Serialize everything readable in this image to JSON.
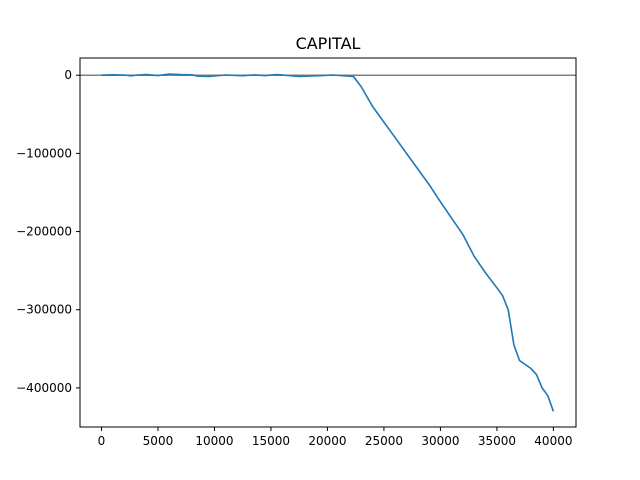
{
  "chart_data": {
    "type": "line",
    "title": "CAPITAL",
    "xlabel": "",
    "ylabel": "",
    "xlim": [
      -1900,
      42000
    ],
    "ylim": [
      -450000,
      22000
    ],
    "xticks": [
      0,
      5000,
      10000,
      15000,
      20000,
      25000,
      30000,
      35000,
      40000
    ],
    "xtick_labels": [
      "0",
      "5000",
      "10000",
      "15000",
      "20000",
      "25000",
      "30000",
      "35000",
      "40000"
    ],
    "yticks": [
      0,
      -100000,
      -200000,
      -300000,
      -400000
    ],
    "ytick_labels": [
      "0",
      "−100000",
      "−200000",
      "−300000",
      "−400000"
    ],
    "grid": false,
    "reference_line": {
      "y": 0,
      "color": "#808080"
    },
    "series": [
      {
        "color": "#1f77b4",
        "points": [
          [
            0,
            0
          ],
          [
            1000,
            500
          ],
          [
            2000,
            300
          ],
          [
            2600,
            -800
          ],
          [
            3200,
            200
          ],
          [
            4000,
            800
          ],
          [
            5000,
            -500
          ],
          [
            6000,
            1500
          ],
          [
            7000,
            800
          ],
          [
            8000,
            500
          ],
          [
            8500,
            -1200
          ],
          [
            9500,
            -1500
          ],
          [
            11000,
            300
          ],
          [
            12500,
            -700
          ],
          [
            13500,
            400
          ],
          [
            14500,
            -500
          ],
          [
            15500,
            800
          ],
          [
            16500,
            -300
          ],
          [
            17500,
            -1500
          ],
          [
            18500,
            -1000
          ],
          [
            19500,
            -500
          ],
          [
            20500,
            300
          ],
          [
            21500,
            -800
          ],
          [
            22300,
            -1500
          ],
          [
            23000,
            -15000
          ],
          [
            24000,
            -40000
          ],
          [
            25000,
            -60000
          ],
          [
            26000,
            -80000
          ],
          [
            27000,
            -100000
          ],
          [
            28000,
            -120000
          ],
          [
            29000,
            -140000
          ],
          [
            30000,
            -162000
          ],
          [
            31000,
            -183000
          ],
          [
            32000,
            -204000
          ],
          [
            33000,
            -232000
          ],
          [
            34000,
            -253000
          ],
          [
            35000,
            -272000
          ],
          [
            35500,
            -282000
          ],
          [
            36000,
            -300000
          ],
          [
            36500,
            -345000
          ],
          [
            37000,
            -365000
          ],
          [
            38000,
            -375000
          ],
          [
            38500,
            -383000
          ],
          [
            39000,
            -400000
          ],
          [
            39500,
            -410000
          ],
          [
            40000,
            -430000
          ]
        ]
      }
    ]
  }
}
